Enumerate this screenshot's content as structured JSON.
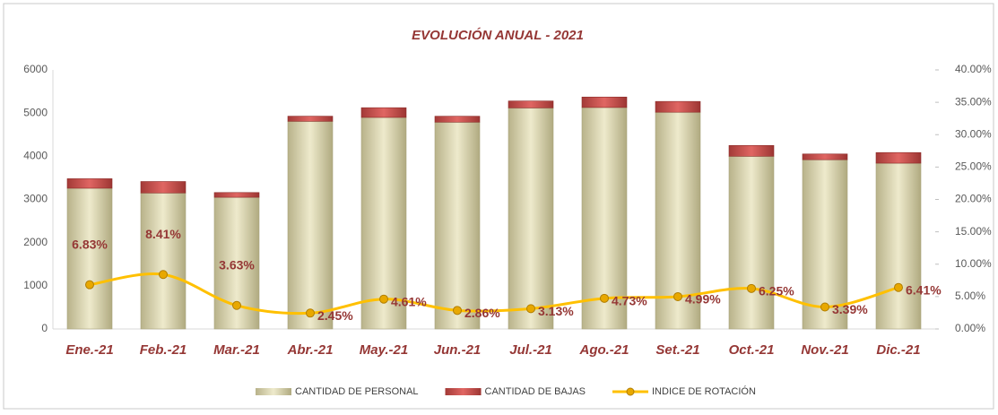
{
  "chart_data": {
    "type": "bar_line",
    "title": "EVOLUCIÓN ANUAL - 2021",
    "categories": [
      "Ene.-21",
      "Feb.-21",
      "Mar.-21",
      "Abr.-21",
      "May.-21",
      "Jun.-21",
      "Jul.-21",
      "Ago.-21",
      "Set.-21",
      "Oct.-21",
      "Nov.-21",
      "Dic.-21"
    ],
    "series": [
      {
        "name": "CANTIDAD DE PERSONAL",
        "color": "#d6d1ac",
        "stack": true,
        "values": [
          3260,
          3150,
          3050,
          4810,
          4900,
          4790,
          5120,
          5130,
          5020,
          4000,
          3920,
          3840
        ]
      },
      {
        "name": "CANTIDAD DE BAJAS",
        "color": "#c0504d",
        "stack": true,
        "values": [
          220,
          265,
          110,
          118,
          225,
          137,
          160,
          242,
          250,
          250,
          133,
          246
        ]
      },
      {
        "name": "INDICE DE ROTACIÓN",
        "color": "#ffc000",
        "axis": "y2",
        "values": [
          6.83,
          8.41,
          3.63,
          2.45,
          4.61,
          2.86,
          3.13,
          4.73,
          4.99,
          6.25,
          3.39,
          6.41
        ],
        "value_labels": [
          "6.83%",
          "8.41%",
          "3.63%",
          "2.45%",
          "4.61%",
          "2.86%",
          "3.13%",
          "4.73%",
          "4.99%",
          "6.25%",
          "3.39%",
          "6.41%"
        ]
      }
    ],
    "ylim": [
      0,
      6000
    ],
    "yticks": [
      0,
      1000,
      2000,
      3000,
      4000,
      5000,
      6000
    ],
    "y2lim": [
      0,
      40
    ],
    "y2ticks": [
      {
        "value": 0,
        "label": "0.00%"
      },
      {
        "value": 5,
        "label": "5.00%"
      },
      {
        "value": 10,
        "label": "10.00%"
      },
      {
        "value": 15,
        "label": "15.00%"
      },
      {
        "value": 20,
        "label": "20.00%"
      },
      {
        "value": 25,
        "label": "25.00%"
      },
      {
        "value": 30,
        "label": "30.00%"
      },
      {
        "value": 35,
        "label": "35.00%"
      },
      {
        "value": 40,
        "label": "40.00%"
      }
    ],
    "grid": false,
    "legend": "bottom"
  }
}
